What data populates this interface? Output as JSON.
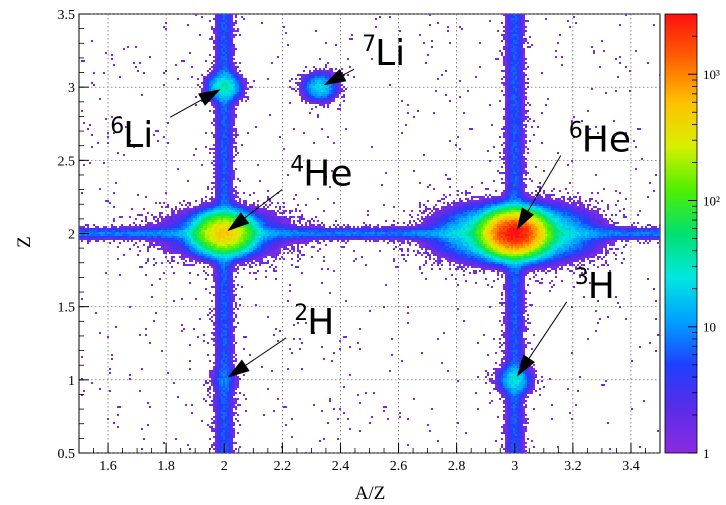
{
  "chart_data": {
    "type": "heatmap",
    "title": "",
    "xlabel": "A/Z",
    "ylabel": "Z",
    "xlim": [
      1.5,
      3.5
    ],
    "ylim": [
      0.5,
      3.5
    ],
    "x_ticks": [
      "1.6",
      "1.8",
      "2",
      "2.2",
      "2.4",
      "2.6",
      "2.8",
      "3",
      "3.2",
      "3.4"
    ],
    "y_ticks": [
      "0.5",
      "1",
      "1.5",
      "2",
      "2.5",
      "3",
      "3.5"
    ],
    "grid": true,
    "colorbar": {
      "scale": "log",
      "range": [
        1,
        3000
      ],
      "ticks": [
        "1",
        "10",
        "10²",
        "10³"
      ],
      "colors": [
        "#8a2be2",
        "#5a2ce8",
        "#1f3fff",
        "#00a0ff",
        "#00e8e0",
        "#00e070",
        "#50f000",
        "#d8f000",
        "#ffc000",
        "#ff6000",
        "#ff1010"
      ]
    },
    "clusters": [
      {
        "isotope": "4He",
        "mass": "4",
        "symbol": "He",
        "center": [
          2.0,
          2.0
        ],
        "peak_count": 500
      },
      {
        "isotope": "6He",
        "mass": "6",
        "symbol": "He",
        "center": [
          3.0,
          2.0
        ],
        "peak_count": 3000
      },
      {
        "isotope": "6Li",
        "mass": "6",
        "symbol": "Li",
        "center": [
          2.0,
          3.0
        ],
        "peak_count": 30
      },
      {
        "isotope": "7Li",
        "mass": "7",
        "symbol": "Li",
        "center": [
          2.33,
          3.0
        ],
        "peak_count": 20
      },
      {
        "isotope": "2H",
        "mass": "2",
        "symbol": "H",
        "center": [
          2.0,
          1.0
        ],
        "peak_count": 3
      },
      {
        "isotope": "3H",
        "mass": "3",
        "symbol": "H",
        "center": [
          3.0,
          1.0
        ],
        "peak_count": 20
      }
    ],
    "annotations": [
      {
        "sup": "7",
        "text": "Li",
        "points_to": [
          2.33,
          3.0
        ]
      },
      {
        "sup": "6",
        "text": "Li",
        "points_to": [
          2.0,
          3.0
        ]
      },
      {
        "sup": "4",
        "text": "He",
        "points_to": [
          2.0,
          2.0
        ]
      },
      {
        "sup": "6",
        "text": "He",
        "points_to": [
          3.0,
          2.0
        ]
      },
      {
        "sup": "3",
        "text": "H",
        "points_to": [
          3.0,
          1.0
        ]
      },
      {
        "sup": "2",
        "text": "H",
        "points_to": [
          2.0,
          1.0
        ]
      }
    ]
  }
}
